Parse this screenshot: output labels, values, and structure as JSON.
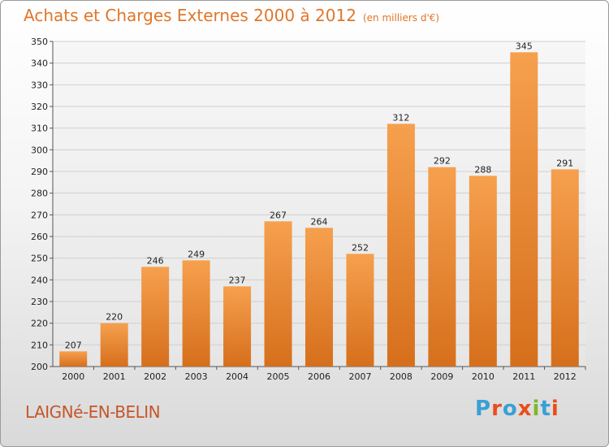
{
  "title": "Achats et Charges Externes 2000 à 2012",
  "subtitle": "(en milliers d'€)",
  "place": "LAIGNé-EN-BELIN",
  "logo": {
    "text": "Proxiti",
    "letters": [
      {
        "ch": "P",
        "color": "#3a9fd6"
      },
      {
        "ch": "r",
        "color": "#e94e1b"
      },
      {
        "ch": "o",
        "color": "#3a9fd6"
      },
      {
        "ch": "x",
        "color": "#e94e1b"
      },
      {
        "ch": "i",
        "color": "#7cb82f"
      },
      {
        "ch": "t",
        "color": "#3a9fd6"
      },
      {
        "ch": "i",
        "color": "#e94e1b"
      }
    ]
  },
  "colors": {
    "bar": "#f0913a",
    "bar_dark": "#d9721f",
    "title": "#e0762a",
    "grid": "#cfcfcf"
  },
  "chart_data": {
    "type": "bar",
    "title": "Achats et Charges Externes 2000 à 2012",
    "subtitle": "(en milliers d'€)",
    "categories": [
      "2000",
      "2001",
      "2002",
      "2003",
      "2004",
      "2005",
      "2006",
      "2007",
      "2008",
      "2009",
      "2010",
      "2011",
      "2012"
    ],
    "values": [
      207,
      220,
      246,
      249,
      237,
      267,
      264,
      252,
      312,
      292,
      288,
      345,
      291
    ],
    "ylim": [
      200,
      350
    ],
    "yticks": [
      200,
      210,
      220,
      230,
      240,
      250,
      260,
      270,
      280,
      290,
      300,
      310,
      320,
      330,
      340,
      350
    ],
    "grid": true,
    "data_labels": true
  }
}
